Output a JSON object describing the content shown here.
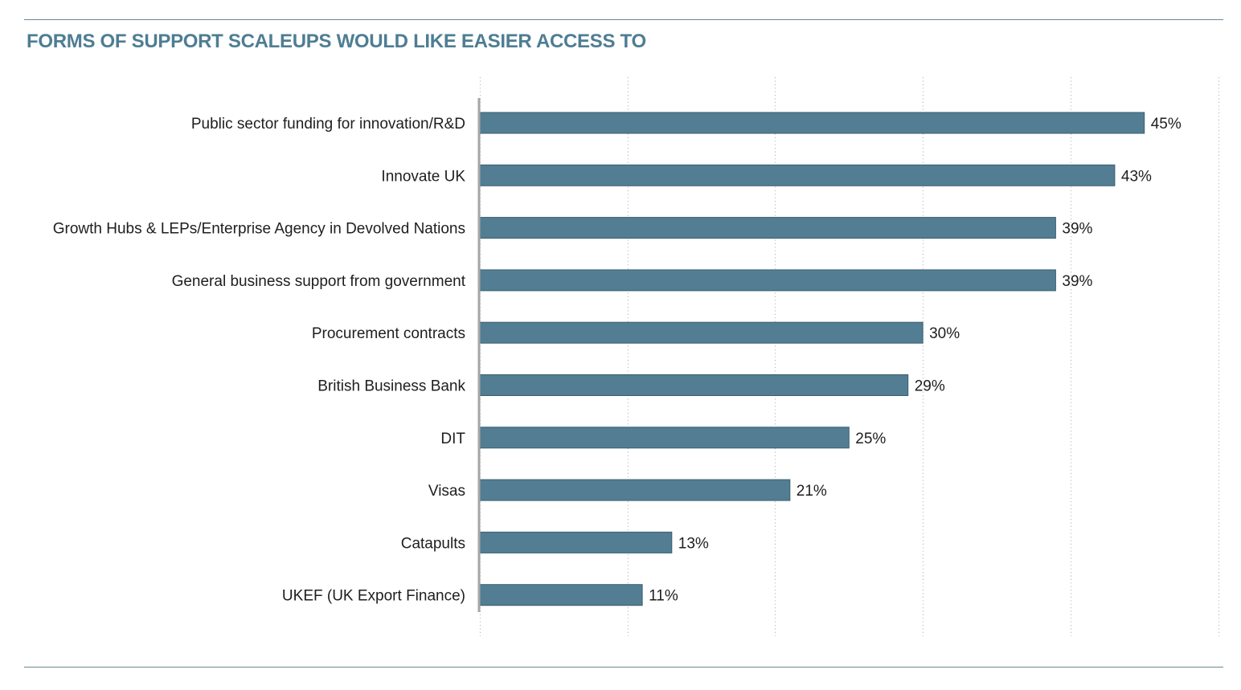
{
  "chart_data": {
    "type": "bar",
    "orientation": "horizontal",
    "title": "FORMS OF SUPPORT SCALEUPS WOULD LIKE EASIER ACCESS TO",
    "xlabel": "",
    "ylabel": "",
    "xlim": [
      0,
      50
    ],
    "grid": true,
    "legend": "none",
    "categories": [
      "Public sector funding for innovation/R&D",
      "Innovate UK",
      "Growth Hubs & LEPs/Enterprise Agency in Devolved Nations",
      "General business support from government",
      "Procurement contracts",
      "British Business Bank",
      "DIT",
      "Visas",
      "Catapults",
      "UKEF (UK Export Finance)"
    ],
    "values": [
      45,
      43,
      39,
      39,
      30,
      29,
      25,
      21,
      13,
      11
    ],
    "value_labels": [
      "45%",
      "43%",
      "39%",
      "39%",
      "30%",
      "29%",
      "25%",
      "21%",
      "13%",
      "11%"
    ],
    "colors": {
      "bar": "#527d92",
      "bar_border": "#3a5f70",
      "title": "#4e7d93",
      "rule": "#6a8797",
      "axis": "#a6a6a6",
      "grid": "#bdbdbd"
    }
  }
}
